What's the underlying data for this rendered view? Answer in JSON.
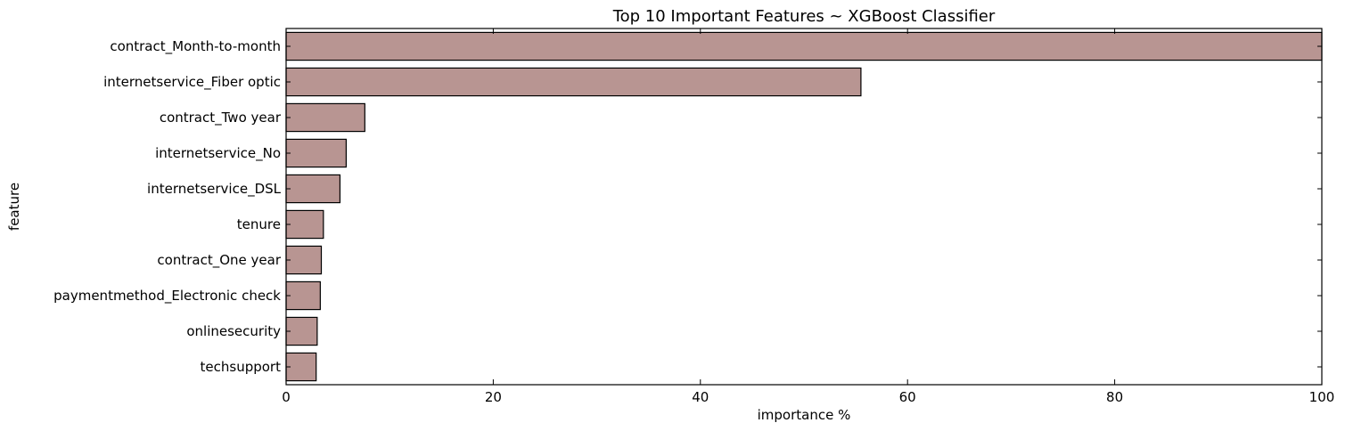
{
  "chart_data": {
    "type": "bar",
    "orientation": "horizontal",
    "title": "Top 10 Important Features ~ XGBoost Classifier",
    "xlabel": "importance %",
    "ylabel": "feature",
    "xlim": [
      0,
      100
    ],
    "xticks": [
      "0",
      "20",
      "40",
      "60",
      "80",
      "100"
    ],
    "grid": false,
    "bar_color": "#b89592",
    "edge_color": "#000000",
    "categories": [
      "contract_Month-to-month",
      "internetservice_Fiber optic",
      "contract_Two year",
      "internetservice_No",
      "internetservice_DSL",
      "tenure",
      "contract_One year",
      "paymentmethod_Electronic check",
      "onlinesecurity",
      "techsupport"
    ],
    "values": [
      100,
      55.5,
      7.6,
      5.8,
      5.2,
      3.6,
      3.4,
      3.3,
      3.0,
      2.9
    ]
  }
}
